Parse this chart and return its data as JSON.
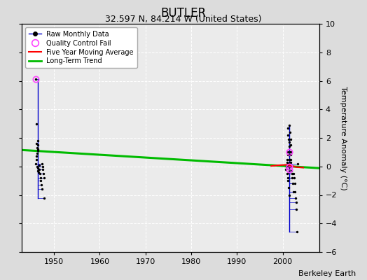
{
  "title": "BUTLER",
  "subtitle": "32.597 N, 84.214 W (United States)",
  "credit": "Berkeley Earth",
  "ylabel": "Temperature Anomaly (°C)",
  "ylim": [
    -6,
    10
  ],
  "xlim": [
    1943,
    2008
  ],
  "yticks": [
    -6,
    -4,
    -2,
    0,
    2,
    4,
    6,
    8,
    10
  ],
  "xticks": [
    1950,
    1960,
    1970,
    1980,
    1990,
    2000
  ],
  "bg_color": "#dcdcdc",
  "plot_bg_color": "#ebebeb",
  "line_color": "#0000cc",
  "dot_color": "#000000",
  "qc_color": "#ff44ff",
  "trend_color": "#00bb00",
  "mavg_color": "#ff0000",
  "title_fontsize": 12,
  "subtitle_fontsize": 9,
  "label_fontsize": 8,
  "tick_fontsize": 8,
  "credit_fontsize": 8,
  "legend_fontsize": 7,
  "group1": {
    "spine_x": 1946.5,
    "points": [
      [
        1946.0,
        6.1
      ],
      [
        1946.1,
        3.0
      ],
      [
        1946.2,
        1.6
      ],
      [
        1946.3,
        1.3
      ],
      [
        1946.4,
        1.1
      ],
      [
        1946.5,
        1.8
      ],
      [
        1946.5,
        1.5
      ],
      [
        1946.4,
        1.2
      ],
      [
        1946.3,
        0.9
      ],
      [
        1946.2,
        0.7
      ],
      [
        1946.1,
        0.5
      ],
      [
        1946.0,
        0.2
      ],
      [
        1946.3,
        0.0
      ],
      [
        1946.4,
        -0.1
      ],
      [
        1946.5,
        -0.3
      ],
      [
        1946.6,
        -0.4
      ],
      [
        1946.7,
        0.1
      ],
      [
        1946.8,
        -0.2
      ],
      [
        1946.9,
        -0.5
      ],
      [
        1947.0,
        -0.8
      ],
      [
        1947.1,
        -1.0
      ],
      [
        1947.2,
        -1.3
      ],
      [
        1947.3,
        -1.6
      ],
      [
        1947.4,
        0.2
      ],
      [
        1947.5,
        0.0
      ],
      [
        1947.6,
        -0.2
      ],
      [
        1947.7,
        -0.5
      ],
      [
        1947.8,
        -0.8
      ],
      [
        1947.9,
        -2.2
      ]
    ],
    "qc_points": [
      [
        1946.0,
        6.1
      ]
    ]
  },
  "group2": {
    "spine_x": 2001.5,
    "points": [
      [
        2001.0,
        0.1
      ],
      [
        2001.1,
        2.7
      ],
      [
        2001.2,
        2.2
      ],
      [
        2001.3,
        1.9
      ],
      [
        2001.4,
        1.7
      ],
      [
        2001.5,
        1.4
      ],
      [
        2001.6,
        1.0
      ],
      [
        2001.5,
        0.8
      ],
      [
        2001.4,
        0.5
      ],
      [
        2001.3,
        0.2
      ],
      [
        2001.2,
        0.0
      ],
      [
        2001.5,
        2.9
      ],
      [
        2001.6,
        2.4
      ],
      [
        2001.7,
        1.9
      ],
      [
        2001.8,
        1.5
      ],
      [
        2001.9,
        1.0
      ],
      [
        2001.8,
        0.8
      ],
      [
        2001.7,
        0.5
      ],
      [
        2001.6,
        0.3
      ],
      [
        2001.5,
        0.0
      ],
      [
        2001.4,
        -0.2
      ],
      [
        2001.3,
        -0.4
      ],
      [
        2001.2,
        1.0
      ],
      [
        2001.1,
        0.8
      ],
      [
        2001.0,
        0.5
      ],
      [
        2000.9,
        0.3
      ],
      [
        2000.8,
        0.0
      ],
      [
        2000.7,
        -0.2
      ],
      [
        2001.0,
        -0.5
      ],
      [
        2001.1,
        -0.8
      ],
      [
        2001.2,
        -1.0
      ],
      [
        2001.3,
        -1.5
      ],
      [
        2001.4,
        -2.0
      ],
      [
        2001.5,
        0.8
      ],
      [
        2001.6,
        0.5
      ],
      [
        2001.7,
        0.3
      ],
      [
        2001.8,
        0.0
      ],
      [
        2001.9,
        -0.3
      ],
      [
        2002.0,
        -0.5
      ],
      [
        2002.1,
        -0.8
      ],
      [
        2002.2,
        -1.2
      ],
      [
        2002.3,
        -1.8
      ],
      [
        2002.4,
        -0.5
      ],
      [
        2002.5,
        -0.8
      ],
      [
        2002.6,
        -1.2
      ],
      [
        2002.7,
        -1.8
      ],
      [
        2002.8,
        -2.2
      ],
      [
        2002.9,
        -2.5
      ],
      [
        2003.0,
        -3.0
      ],
      [
        2003.1,
        -4.6
      ],
      [
        2003.2,
        0.2
      ]
    ],
    "qc_points": [
      [
        2001.5,
        1.0
      ],
      [
        2001.5,
        0.0
      ],
      [
        2001.4,
        -0.2
      ]
    ]
  },
  "trend_x": [
    1943,
    2008
  ],
  "trend_y": [
    1.15,
    -0.12
  ],
  "mavg_x": [
    1997.5,
    1999.0,
    2001.0,
    2003.0,
    2004.5
  ],
  "mavg_y": [
    0.03,
    0.08,
    0.12,
    -0.05,
    -0.08
  ]
}
